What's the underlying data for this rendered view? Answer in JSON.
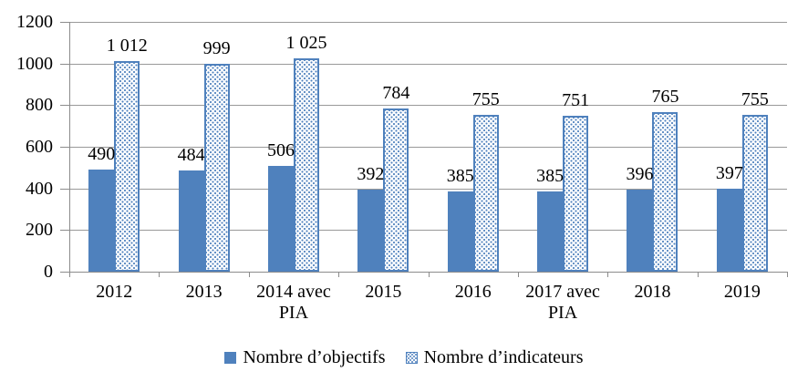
{
  "chart_data": {
    "type": "bar",
    "title": "",
    "categories": [
      "2012",
      "2013",
      "2014 avec PIA",
      "2015",
      "2016",
      "2017 avec PIA",
      "2018",
      "2019"
    ],
    "series": [
      {
        "name": "Nombre d’objectifs",
        "values": [
          490,
          484,
          506,
          392,
          385,
          385,
          396,
          397
        ],
        "data_labels": [
          "490",
          "484",
          "506",
          "392",
          "385",
          "385",
          "396",
          "397"
        ],
        "fill": "solid",
        "color": "#4F81BD"
      },
      {
        "name": "Nombre d’indicateurs",
        "values": [
          1012,
          999,
          1025,
          784,
          755,
          751,
          765,
          755
        ],
        "data_labels": [
          "1 012",
          "999",
          "1 025",
          "784",
          "755",
          "751",
          "765",
          "755"
        ],
        "fill": "dotted",
        "color": "#4F81BD"
      }
    ],
    "ylim": [
      0,
      1200
    ],
    "yticks": [
      0,
      200,
      400,
      600,
      800,
      1000,
      1200
    ],
    "ytick_labels": [
      "0",
      "200",
      "400",
      "600",
      "800",
      "1000",
      "1200"
    ],
    "grid": true,
    "legend_position": "bottom"
  },
  "colors": {
    "bar_blue": "#4F81BD",
    "gridline": "#999999",
    "axis": "#8C8C8C",
    "text": "#000000",
    "background": "#FFFFFF"
  }
}
